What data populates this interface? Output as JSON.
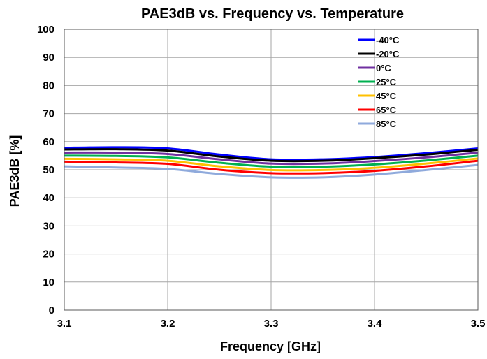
{
  "chart_data": {
    "type": "line",
    "title": "PAE3dB vs. Frequency vs. Temperature",
    "xlabel": "Frequency [GHz]",
    "ylabel": "PAE3dB [%]",
    "xlim": [
      3.1,
      3.5
    ],
    "ylim": [
      0,
      100
    ],
    "x_ticks": [
      "3.1",
      "3.2",
      "3.3",
      "3.4",
      "3.5"
    ],
    "y_ticks": [
      "0",
      "10",
      "20",
      "30",
      "40",
      "50",
      "60",
      "70",
      "80",
      "90",
      "100"
    ],
    "grid": true,
    "legend_position": "top-right",
    "x": [
      3.1,
      3.15,
      3.2,
      3.25,
      3.3,
      3.35,
      3.4,
      3.45,
      3.5
    ],
    "series": [
      {
        "name": "-40°C",
        "color": "#0000ff",
        "values": [
          57.8,
          58.0,
          57.6,
          55.4,
          53.7,
          53.7,
          54.5,
          55.9,
          57.6
        ]
      },
      {
        "name": "-20°C",
        "color": "#000000",
        "values": [
          57.2,
          57.3,
          56.8,
          54.7,
          53.2,
          53.2,
          54.1,
          55.4,
          57.1
        ]
      },
      {
        "name": "0°C",
        "color": "#7030a0",
        "values": [
          56.1,
          56.1,
          55.6,
          53.7,
          52.2,
          52.2,
          53.1,
          54.4,
          56.1
        ]
      },
      {
        "name": "25°C",
        "color": "#00b050",
        "values": [
          55.0,
          54.9,
          54.4,
          52.5,
          51.1,
          51.1,
          51.9,
          53.3,
          55.0
        ]
      },
      {
        "name": "45°C",
        "color": "#ffc000",
        "values": [
          53.9,
          53.7,
          53.2,
          51.2,
          49.9,
          49.9,
          50.7,
          52.2,
          54.0
        ]
      },
      {
        "name": "65°C",
        "color": "#ff0000",
        "values": [
          52.9,
          52.6,
          52.1,
          50.0,
          48.8,
          48.8,
          49.6,
          51.2,
          53.2
        ]
      },
      {
        "name": "85°C",
        "color": "#8faadc",
        "values": [
          51.2,
          50.8,
          50.3,
          48.5,
          47.3,
          47.3,
          48.3,
          49.9,
          51.7
        ]
      }
    ]
  }
}
